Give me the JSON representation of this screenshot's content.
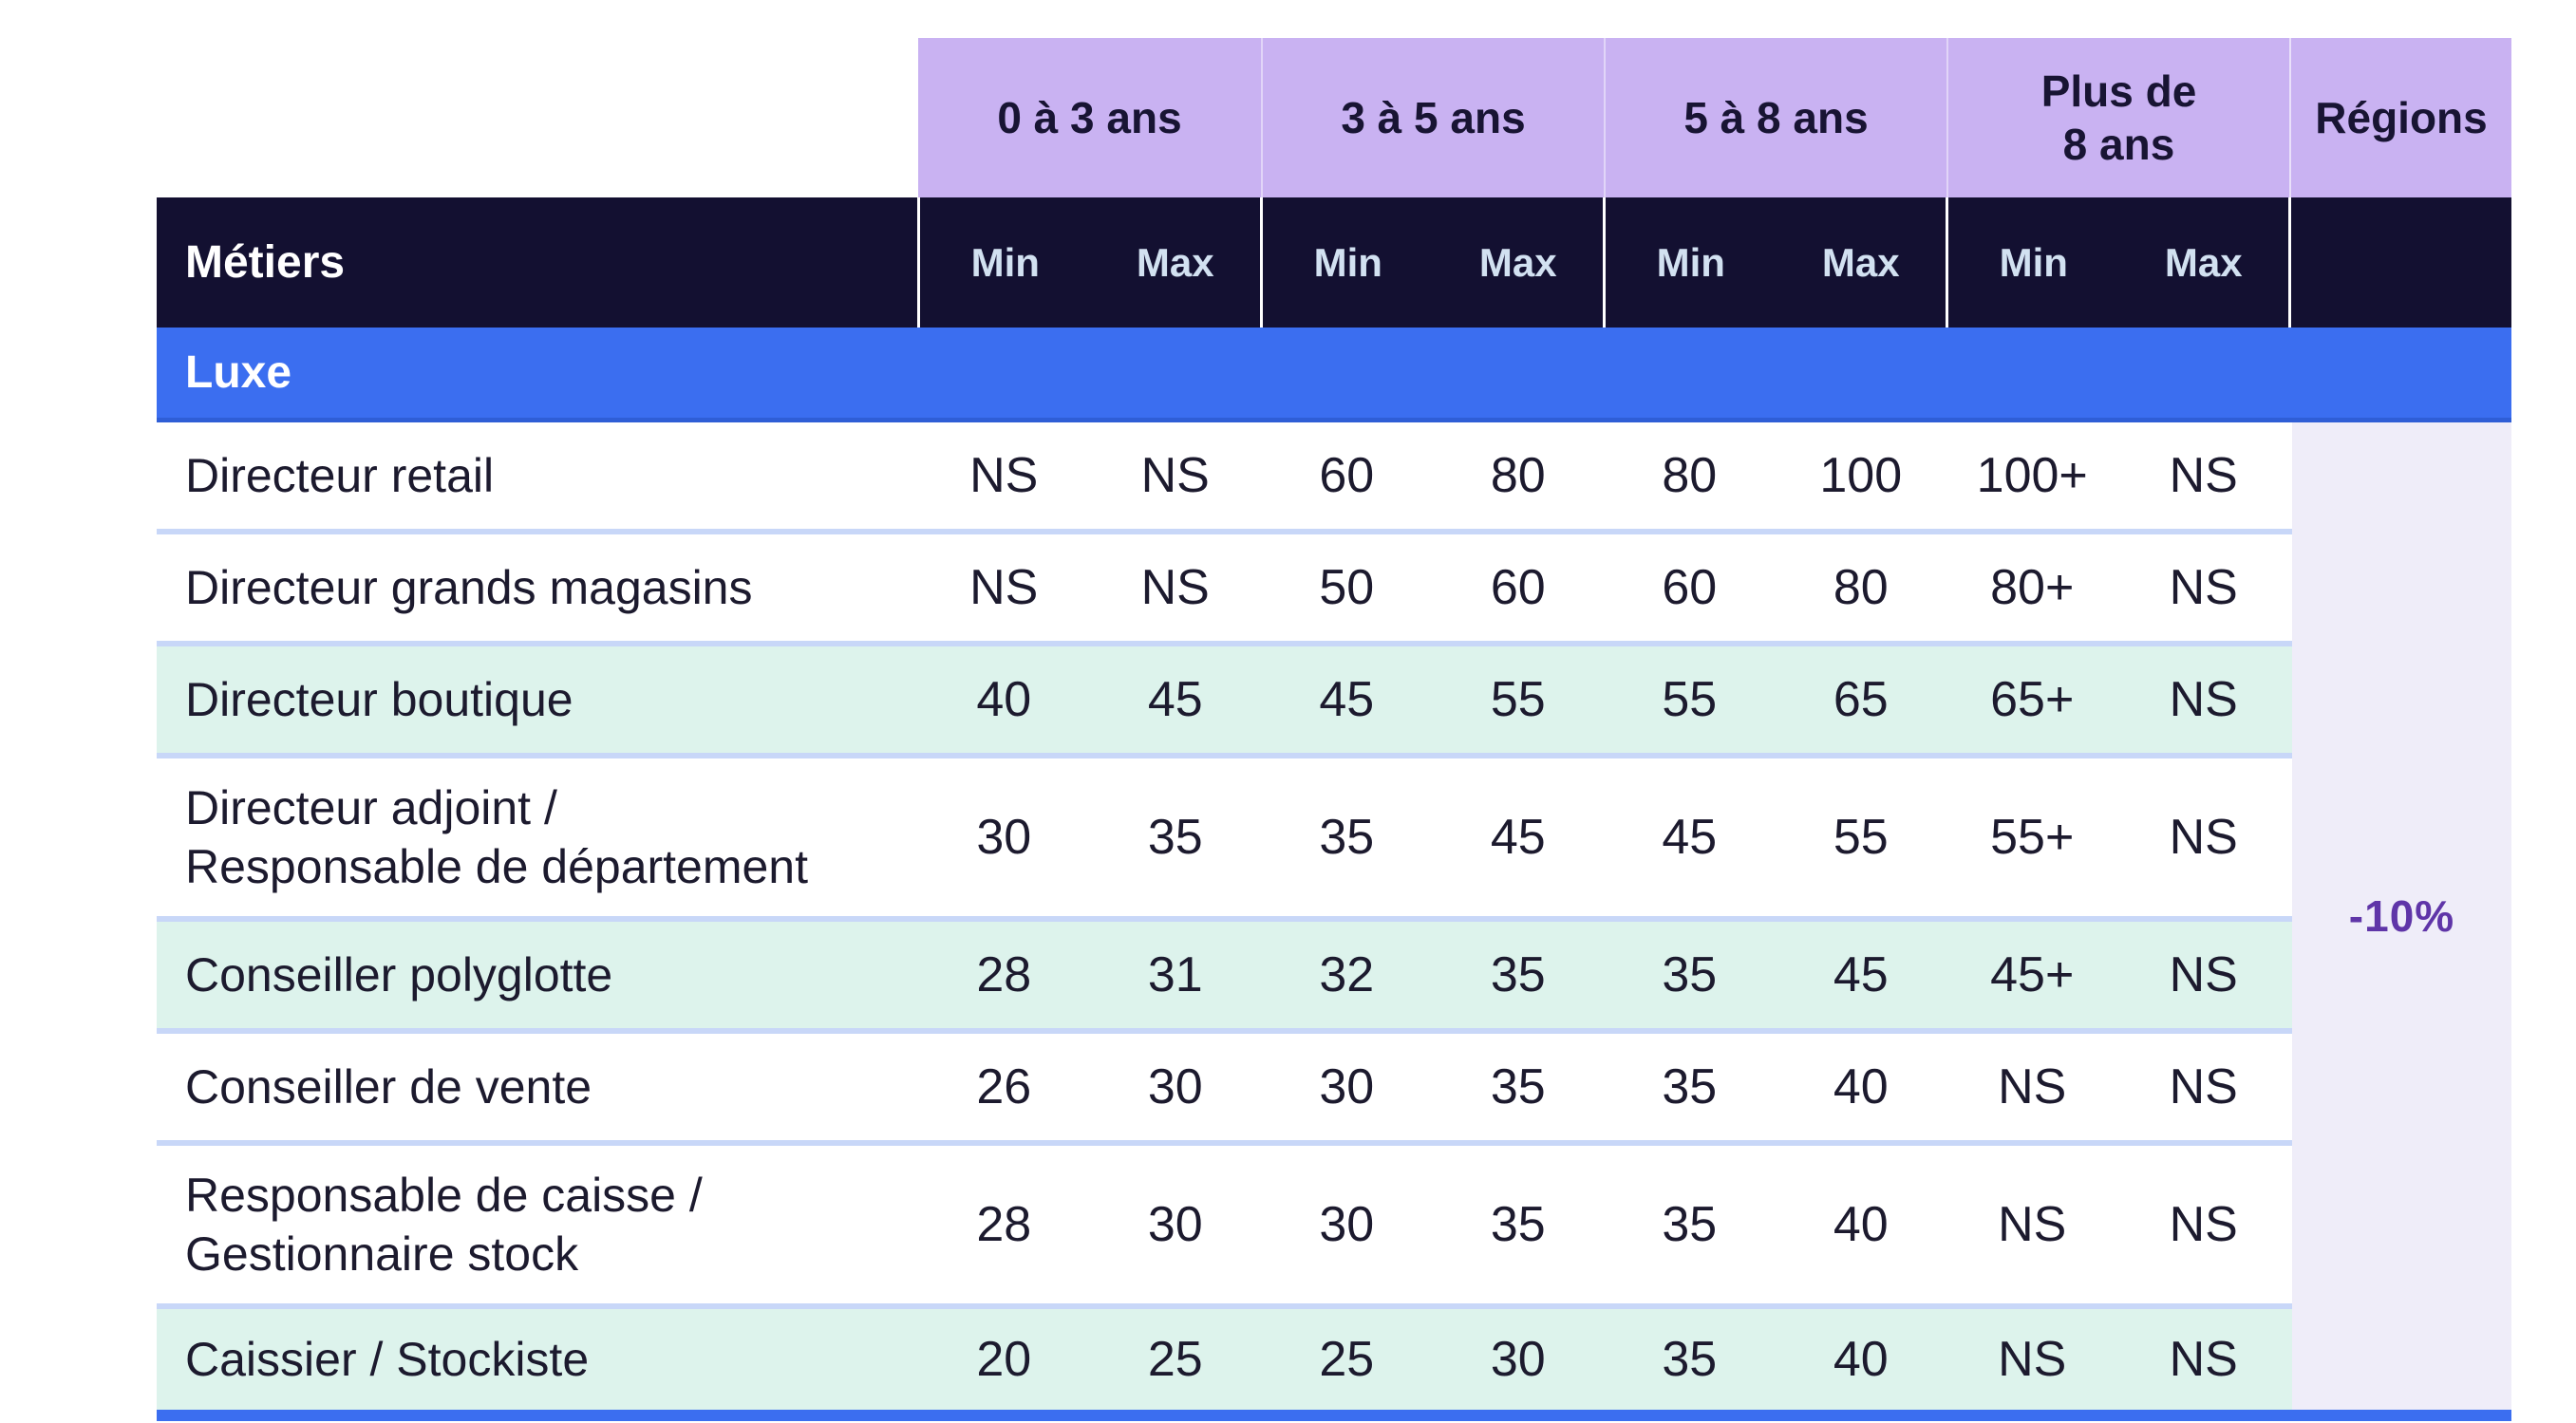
{
  "table": {
    "corner_header": "Métiers",
    "regions_header": "Régions",
    "regions_value": "-10%",
    "experience_groups": [
      {
        "label_lines": [
          "0 à 3 ans"
        ],
        "sub": [
          "Min",
          "Max"
        ]
      },
      {
        "label_lines": [
          "3 à 5 ans"
        ],
        "sub": [
          "Min",
          "Max"
        ]
      },
      {
        "label_lines": [
          "5 à 8 ans"
        ],
        "sub": [
          "Min",
          "Max"
        ]
      },
      {
        "label_lines": [
          "Plus de",
          "8 ans"
        ],
        "sub": [
          "Min",
          "Max"
        ]
      }
    ],
    "section": {
      "label": "Luxe"
    },
    "rows": [
      {
        "label_lines": [
          "Directeur retail"
        ],
        "shade": "white",
        "values": [
          "NS",
          "NS",
          "60",
          "80",
          "80",
          "100",
          "100+",
          "NS"
        ]
      },
      {
        "label_lines": [
          "Directeur grands magasins"
        ],
        "shade": "white",
        "values": [
          "NS",
          "NS",
          "50",
          "60",
          "60",
          "80",
          "80+",
          "NS"
        ]
      },
      {
        "label_lines": [
          "Directeur boutique"
        ],
        "shade": "mint",
        "values": [
          "40",
          "45",
          "45",
          "55",
          "55",
          "65",
          "65+",
          "NS"
        ]
      },
      {
        "label_lines": [
          "Directeur adjoint /",
          "Responsable de département"
        ],
        "shade": "white",
        "values": [
          "30",
          "35",
          "35",
          "45",
          "45",
          "55",
          "55+",
          "NS"
        ]
      },
      {
        "label_lines": [
          "Conseiller polyglotte"
        ],
        "shade": "mint",
        "values": [
          "28",
          "31",
          "32",
          "35",
          "35",
          "45",
          "45+",
          "NS"
        ]
      },
      {
        "label_lines": [
          "Conseiller de vente"
        ],
        "shade": "white",
        "values": [
          "26",
          "30",
          "30",
          "35",
          "35",
          "40",
          "NS",
          "NS"
        ]
      },
      {
        "label_lines": [
          "Responsable de caisse /",
          "Gestionnaire stock"
        ],
        "shade": "white",
        "values": [
          "28",
          "30",
          "30",
          "35",
          "35",
          "40",
          "NS",
          "NS"
        ]
      },
      {
        "label_lines": [
          "Caissier / Stockiste"
        ],
        "shade": "mint",
        "values": [
          "20",
          "25",
          "25",
          "30",
          "35",
          "40",
          "NS",
          "NS"
        ]
      }
    ]
  },
  "colors": {
    "band": "#c9b2f2",
    "band-text": "#181433",
    "navy": "#131031",
    "minmax-text": "#d2e1f1",
    "blue": "#3b6ef0",
    "mint": "#ddf3ec",
    "separator": "#c8d7f8",
    "lavender": "#efedf9",
    "purple-text": "#5f35a8",
    "text": "#1c1a2e"
  }
}
